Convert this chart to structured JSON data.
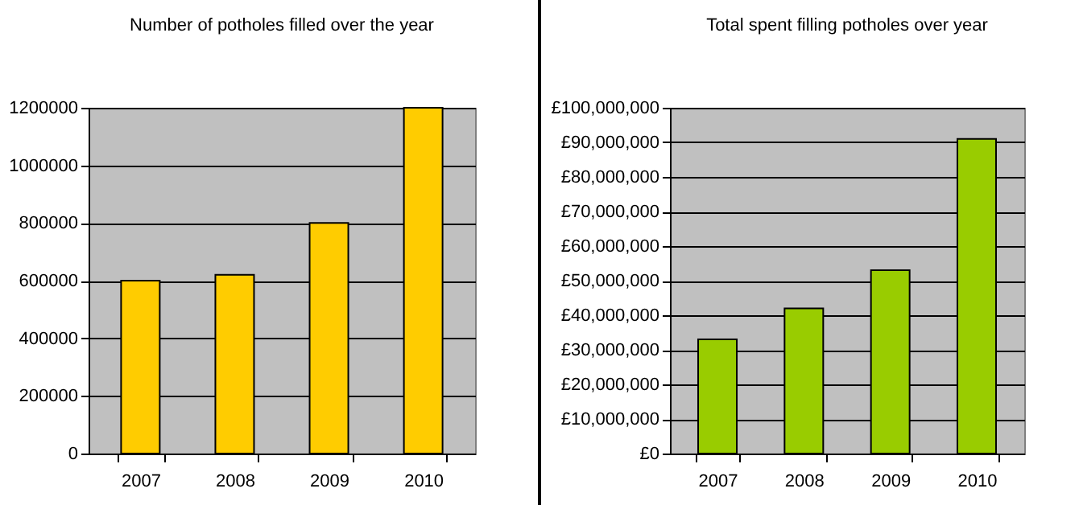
{
  "chart_data": [
    {
      "type": "bar",
      "title": "Number of potholes filled over the year",
      "categories": [
        "2007",
        "2008",
        "2009",
        "2010"
      ],
      "values": [
        600000,
        620000,
        800000,
        1200000
      ],
      "color": "#ffcc00",
      "ylim": [
        0,
        1200000
      ],
      "yticks": [
        0,
        200000,
        400000,
        600000,
        800000,
        1000000,
        1200000
      ],
      "grid": "y"
    },
    {
      "type": "bar",
      "title": "Total spent filling potholes over year",
      "categories": [
        "2007",
        "2008",
        "2009",
        "2010"
      ],
      "values": [
        33000000,
        42000000,
        53000000,
        91000000
      ],
      "color": "#99cc00",
      "ylim": [
        0,
        100000000
      ],
      "yticks": [
        {
          "value": 0,
          "label": "£0"
        },
        {
          "value": 10000000,
          "label": "£10,000,000"
        },
        {
          "value": 20000000,
          "label": "£20,000,000"
        },
        {
          "value": 30000000,
          "label": "£30,000,000"
        },
        {
          "value": 40000000,
          "label": "£40,000,000"
        },
        {
          "value": 50000000,
          "label": "£50,000,000"
        },
        {
          "value": 60000000,
          "label": "£60,000,000"
        },
        {
          "value": 70000000,
          "label": "£70,000,000"
        },
        {
          "value": 80000000,
          "label": "£80,000,000"
        },
        {
          "value": 90000000,
          "label": "£90,000,000"
        },
        {
          "value": 100000000,
          "label": "£100,000,000"
        }
      ],
      "grid": "y"
    }
  ]
}
